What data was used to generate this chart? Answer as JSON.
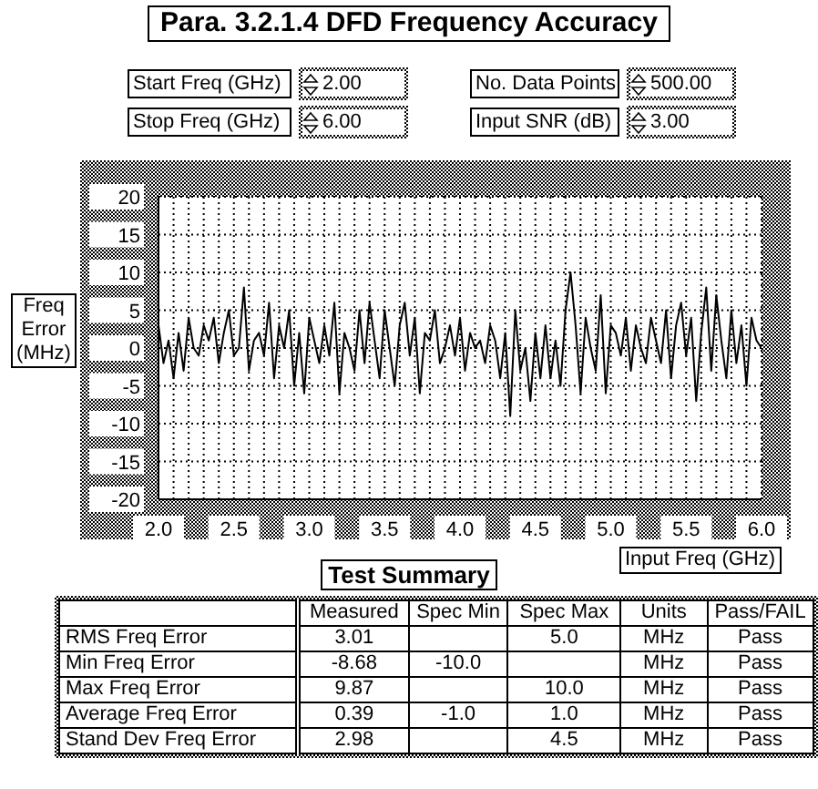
{
  "chart_data": {
    "type": "line",
    "title": "Para. 3.2.1.4 DFD Frequency Accuracy",
    "xlabel": "Input Freq (GHz)",
    "ylabel": "Freq Error (MHz)",
    "x": [
      2.0,
      2.0333,
      2.0667,
      2.1,
      2.1333,
      2.1667,
      2.2,
      2.2333,
      2.2667,
      2.3,
      2.3333,
      2.3667,
      2.4,
      2.4333,
      2.4667,
      2.5,
      2.5333,
      2.5667,
      2.6,
      2.6333,
      2.6667,
      2.7,
      2.7333,
      2.7667,
      2.8,
      2.8333,
      2.8667,
      2.9,
      2.9333,
      2.9667,
      3.0,
      3.0333,
      3.0667,
      3.1,
      3.1333,
      3.1667,
      3.2,
      3.2333,
      3.2667,
      3.3,
      3.3333,
      3.3667,
      3.4,
      3.4333,
      3.4667,
      3.5,
      3.5333,
      3.5667,
      3.6,
      3.6333,
      3.6667,
      3.7,
      3.7333,
      3.7667,
      3.8,
      3.8333,
      3.8667,
      3.9,
      3.9333,
      3.9667,
      4.0,
      4.0333,
      4.0667,
      4.1,
      4.1333,
      4.1667,
      4.2,
      4.2333,
      4.2667,
      4.3,
      4.3333,
      4.3667,
      4.4,
      4.4333,
      4.4667,
      4.5,
      4.5333,
      4.5667,
      4.6,
      4.6333,
      4.6667,
      4.7,
      4.7333,
      4.7667,
      4.8,
      4.8333,
      4.8667,
      4.9,
      4.9333,
      4.9667,
      5.0,
      5.0333,
      5.0667,
      5.1,
      5.1333,
      5.1667,
      5.2,
      5.2333,
      5.2667,
      5.3,
      5.3333,
      5.3667,
      5.4,
      5.4333,
      5.4667,
      5.5,
      5.5333,
      5.5667,
      5.6,
      5.6333,
      5.6667,
      5.7,
      5.7333,
      5.7667,
      5.8,
      5.8333,
      5.8667,
      5.9,
      5.9333,
      5.9667,
      6.0
    ],
    "series": [
      {
        "color": "#000000",
        "values": [
          3,
          -2,
          1,
          -4,
          2,
          -3,
          4,
          0,
          -1,
          3,
          1,
          4,
          -2,
          2,
          5,
          -1,
          0,
          8,
          -3,
          1,
          2,
          -1,
          6,
          -4,
          3,
          0,
          5,
          -5,
          2,
          -6,
          4,
          1,
          -2,
          3,
          -1,
          6,
          -6,
          2,
          0,
          -3,
          5,
          -2,
          6,
          1,
          -4,
          5,
          0,
          -5,
          3,
          6,
          -1,
          4,
          -6,
          2,
          1,
          5,
          -2,
          0,
          3,
          -1,
          4,
          -3,
          2,
          0,
          1,
          -2,
          3,
          1,
          -4,
          2,
          -9,
          5,
          -3,
          0,
          -7,
          2,
          -4,
          3,
          -4,
          1,
          -5,
          5,
          10,
          3,
          -6,
          4,
          0,
          -3,
          7,
          -6,
          3,
          2,
          -1,
          4,
          -3,
          3,
          0,
          -2,
          4,
          1,
          -2,
          5,
          -4,
          3,
          6,
          -1,
          4,
          -7,
          2,
          8,
          -3,
          7,
          1,
          -4,
          5,
          -2,
          3,
          -5,
          4,
          1,
          0
        ]
      }
    ],
    "xlim": [
      2.0,
      6.0
    ],
    "xticks": [
      {
        "value": 2.0,
        "label": "2.0"
      },
      {
        "value": 2.1,
        "label": null
      },
      {
        "value": 2.2,
        "label": null
      },
      {
        "value": 2.3,
        "label": null
      },
      {
        "value": 2.4,
        "label": null
      },
      {
        "value": 2.5,
        "label": "2.5"
      },
      {
        "value": 2.6,
        "label": null
      },
      {
        "value": 2.7,
        "label": null
      },
      {
        "value": 2.8,
        "label": null
      },
      {
        "value": 2.9,
        "label": null
      },
      {
        "value": 3.0,
        "label": "3.0"
      },
      {
        "value": 3.1,
        "label": null
      },
      {
        "value": 3.2,
        "label": null
      },
      {
        "value": 3.3,
        "label": null
      },
      {
        "value": 3.4,
        "label": null
      },
      {
        "value": 3.5,
        "label": "3.5"
      },
      {
        "value": 3.6,
        "label": null
      },
      {
        "value": 3.7,
        "label": null
      },
      {
        "value": 3.8,
        "label": null
      },
      {
        "value": 3.9,
        "label": null
      },
      {
        "value": 4.0,
        "label": "4.0"
      },
      {
        "value": 4.1,
        "label": null
      },
      {
        "value": 4.2,
        "label": null
      },
      {
        "value": 4.3,
        "label": null
      },
      {
        "value": 4.4,
        "label": null
      },
      {
        "value": 4.5,
        "label": "4.5"
      },
      {
        "value": 4.6,
        "label": null
      },
      {
        "value": 4.7,
        "label": null
      },
      {
        "value": 4.8,
        "label": null
      },
      {
        "value": 4.9,
        "label": null
      },
      {
        "value": 5.0,
        "label": "5.0"
      },
      {
        "value": 5.1,
        "label": null
      },
      {
        "value": 5.2,
        "label": null
      },
      {
        "value": 5.3,
        "label": null
      },
      {
        "value": 5.4,
        "label": null
      },
      {
        "value": 5.5,
        "label": "5.5"
      },
      {
        "value": 5.6,
        "label": null
      },
      {
        "value": 5.7,
        "label": null
      },
      {
        "value": 5.8,
        "label": null
      },
      {
        "value": 5.9,
        "label": null
      },
      {
        "value": 6.0,
        "label": "6.0"
      }
    ],
    "ylim": [
      -20,
      20
    ],
    "yticks": [
      -20,
      -15,
      -10,
      -5,
      0,
      5,
      10,
      15,
      20
    ],
    "grid": true,
    "marker": "none",
    "line_style": "solid",
    "legend": false,
    "annotations": [
      "Start Freq (GHz)",
      "2.00",
      "Stop Freq (GHz)",
      "6.00",
      "No. Data Points",
      "500.00",
      "Input SNR (dB)",
      "3.00",
      "Test Summary",
      "\tMeasured\tSpec Min\tSpec Max\tUnits\tPass/FAIL",
      "RMS Freq Error\t3.01\t\t5.0\tMHz\tPass",
      "Min Freq Error\t-8.68\t-10.0\t\tMHz\tPass",
      "Max Freq Error\t9.87\t\t10.0\tMHz\tPass",
      "Average Freq Error\t0.39\t-1.0\t1.0\tMHz\tPass",
      "Stand Dev Freq Error\t2.98\t\t4.5\tMHz\tPass"
    ]
  }
}
